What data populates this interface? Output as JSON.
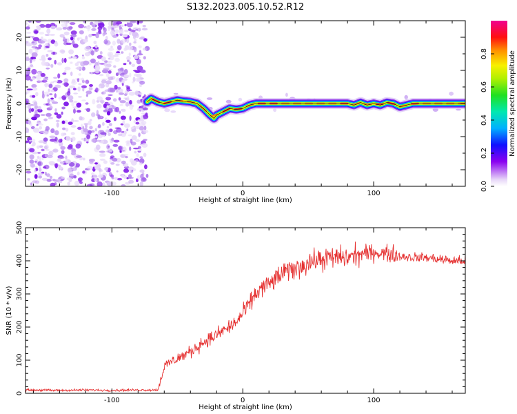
{
  "title": "S132.2023.005.10.52.R12",
  "chart_data": [
    {
      "type": "heatmap",
      "title": "S132.2023.005.10.52.R12",
      "xlabel": "Height of straight line (km)",
      "ylabel": "Frequency (Hz)",
      "xlim": [
        -166,
        170
      ],
      "ylim": [
        -25,
        25
      ],
      "x_ticks": [
        -100,
        0,
        100
      ],
      "y_ticks": [
        -20,
        -10,
        0,
        10,
        20
      ],
      "noise_region_x": [
        -166,
        -73
      ],
      "ridge": {
        "x": [
          -73,
          -70,
          -65,
          -60,
          -55,
          -50,
          -45,
          -40,
          -35,
          -30,
          -25,
          -22,
          -20,
          -15,
          -10,
          -5,
          0,
          5,
          10,
          20,
          40,
          60,
          80,
          85,
          90,
          95,
          100,
          105,
          110,
          115,
          120,
          130,
          150,
          170
        ],
        "y": [
          0.5,
          1.5,
          0.5,
          0.0,
          0.5,
          1.0,
          0.7,
          0.5,
          0.0,
          -1.5,
          -3.5,
          -4.5,
          -3.5,
          -2.5,
          -1.5,
          -1.8,
          -1.5,
          -0.5,
          0.0,
          0.0,
          0.0,
          0.0,
          0.0,
          -0.5,
          0.3,
          -0.5,
          0.0,
          -0.5,
          0.3,
          0.0,
          -1.0,
          0.0,
          0.0,
          0.0
        ]
      },
      "colorbar": {
        "label": "Normalized spectral amplitude",
        "ticks": [
          "0.0",
          "0.2",
          "0.4",
          "0.6",
          "0.8"
        ],
        "range": [
          0,
          1
        ]
      }
    },
    {
      "type": "line",
      "xlabel": "Height of straight line (km)",
      "ylabel": "SNR (10 * v/v)",
      "xlim": [
        -166,
        170
      ],
      "ylim": [
        0,
        500
      ],
      "x_ticks": [
        -100,
        0,
        100
      ],
      "y_ticks": [
        0,
        100,
        200,
        300,
        400,
        500
      ],
      "series": [
        {
          "color": "#e53030",
          "x": [
            -166,
            -140,
            -120,
            -100,
            -80,
            -65,
            -60,
            -55,
            -50,
            -45,
            -40,
            -35,
            -30,
            -25,
            -20,
            -15,
            -10,
            -5,
            0,
            5,
            10,
            15,
            20,
            25,
            30,
            35,
            40,
            45,
            50,
            60,
            70,
            80,
            90,
            100,
            105,
            110,
            115,
            120,
            130,
            140,
            150,
            160,
            170
          ],
          "y": [
            10,
            9,
            10,
            9,
            10,
            10,
            80,
            95,
            105,
            115,
            125,
            140,
            155,
            165,
            175,
            190,
            200,
            215,
            240,
            270,
            300,
            320,
            330,
            345,
            360,
            370,
            375,
            385,
            395,
            405,
            410,
            410,
            420,
            425,
            425,
            420,
            420,
            415,
            410,
            410,
            405,
            400,
            400
          ]
        }
      ]
    }
  ]
}
